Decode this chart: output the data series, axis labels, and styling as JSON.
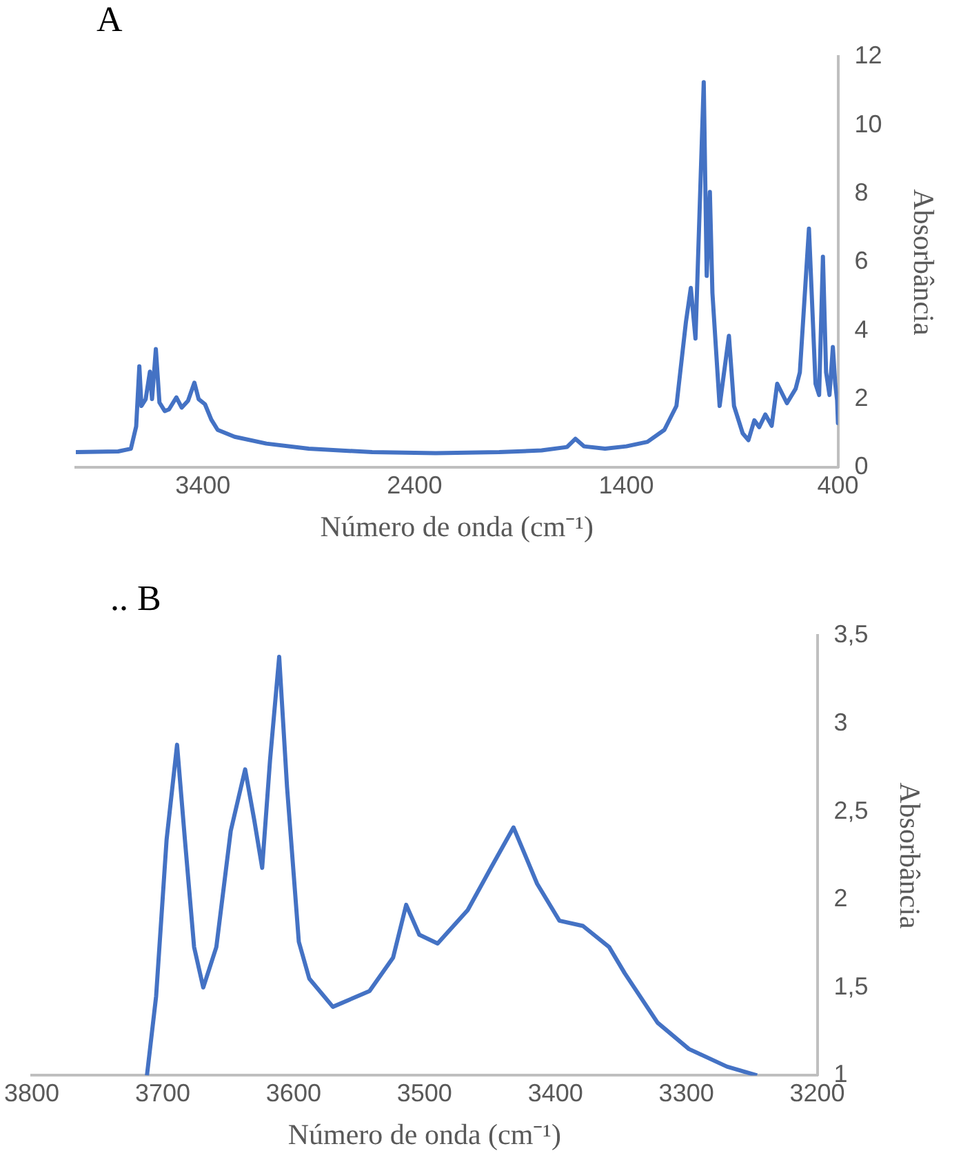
{
  "chart_data": [
    {
      "type": "line",
      "title": "A",
      "xlabel": "Número de onda (cm⁻¹)",
      "ylabel": "Absorbância",
      "xlim": [
        4000,
        400
      ],
      "xticks": [
        3400,
        2400,
        1400,
        400
      ],
      "ylim": [
        0,
        12
      ],
      "yticks": [
        0,
        2,
        4,
        6,
        8,
        10,
        12
      ],
      "grid": false,
      "legend": false,
      "series": [
        {
          "color": "#4472c4",
          "x": [
            4000,
            3800,
            3740,
            3715,
            3700,
            3690,
            3670,
            3650,
            3640,
            3622,
            3605,
            3580,
            3560,
            3525,
            3500,
            3470,
            3440,
            3420,
            3390,
            3360,
            3330,
            3250,
            3100,
            2900,
            2600,
            2300,
            2000,
            1800,
            1680,
            1640,
            1600,
            1500,
            1400,
            1300,
            1220,
            1163,
            1118,
            1095,
            1073,
            1034,
            1020,
            1005,
            993,
            959,
            915,
            891,
            850,
            823,
            795,
            772,
            743,
            713,
            687,
            641,
            600,
            580,
            537,
            506,
            489,
            471,
            456,
            440,
            424,
            413,
            404,
            400
          ],
          "values": [
            0.45,
            0.47,
            0.55,
            1.2,
            2.96,
            1.8,
            2.0,
            2.8,
            2.0,
            3.46,
            1.9,
            1.65,
            1.7,
            2.05,
            1.75,
            1.95,
            2.48,
            2.0,
            1.85,
            1.4,
            1.1,
            0.9,
            0.7,
            0.55,
            0.45,
            0.42,
            0.45,
            0.5,
            0.6,
            0.84,
            0.62,
            0.55,
            0.62,
            0.75,
            1.1,
            1.8,
            4.26,
            5.25,
            3.77,
            11.26,
            5.6,
            8.05,
            5.1,
            1.8,
            3.85,
            1.8,
            1.0,
            0.8,
            1.38,
            1.18,
            1.55,
            1.22,
            2.45,
            1.88,
            2.3,
            2.78,
            6.98,
            2.45,
            2.12,
            6.16,
            2.78,
            2.12,
            3.52,
            2.45,
            1.97,
            1.3
          ]
        }
      ]
    },
    {
      "type": "line",
      "title": ".. B",
      "xlabel": "Número de onda (cm⁻¹)",
      "ylabel": "Absorbância",
      "xlim": [
        3800,
        3200
      ],
      "xticks": [
        3800,
        3700,
        3600,
        3500,
        3400,
        3300,
        3200
      ],
      "ylim": [
        1,
        3.5
      ],
      "yticks": [
        1,
        {
          "value": 1.5,
          "label": "1,5"
        },
        2,
        {
          "value": 2.5,
          "label": "2,5"
        },
        3,
        {
          "value": 3.5,
          "label": "3,5"
        }
      ],
      "grid": false,
      "legend": false,
      "series": [
        {
          "color": "#4472c4",
          "x": [
            3712,
            3705,
            3697,
            3689,
            3683,
            3676,
            3669,
            3659,
            3648,
            3637,
            3630,
            3624,
            3618,
            3611,
            3605,
            3596,
            3588,
            3570,
            3542,
            3524,
            3514,
            3504,
            3490,
            3467,
            3450,
            3432,
            3414,
            3397,
            3379,
            3359,
            3347,
            3322,
            3298,
            3269,
            3246
          ],
          "values": [
            1.0,
            1.45,
            2.34,
            2.88,
            2.34,
            1.73,
            1.5,
            1.73,
            2.39,
            2.74,
            2.45,
            2.18,
            2.79,
            3.38,
            2.64,
            1.76,
            1.55,
            1.39,
            1.48,
            1.67,
            1.97,
            1.8,
            1.75,
            1.94,
            2.17,
            2.41,
            2.09,
            1.88,
            1.85,
            1.73,
            1.58,
            1.3,
            1.15,
            1.05,
            1.0
          ]
        }
      ]
    }
  ]
}
